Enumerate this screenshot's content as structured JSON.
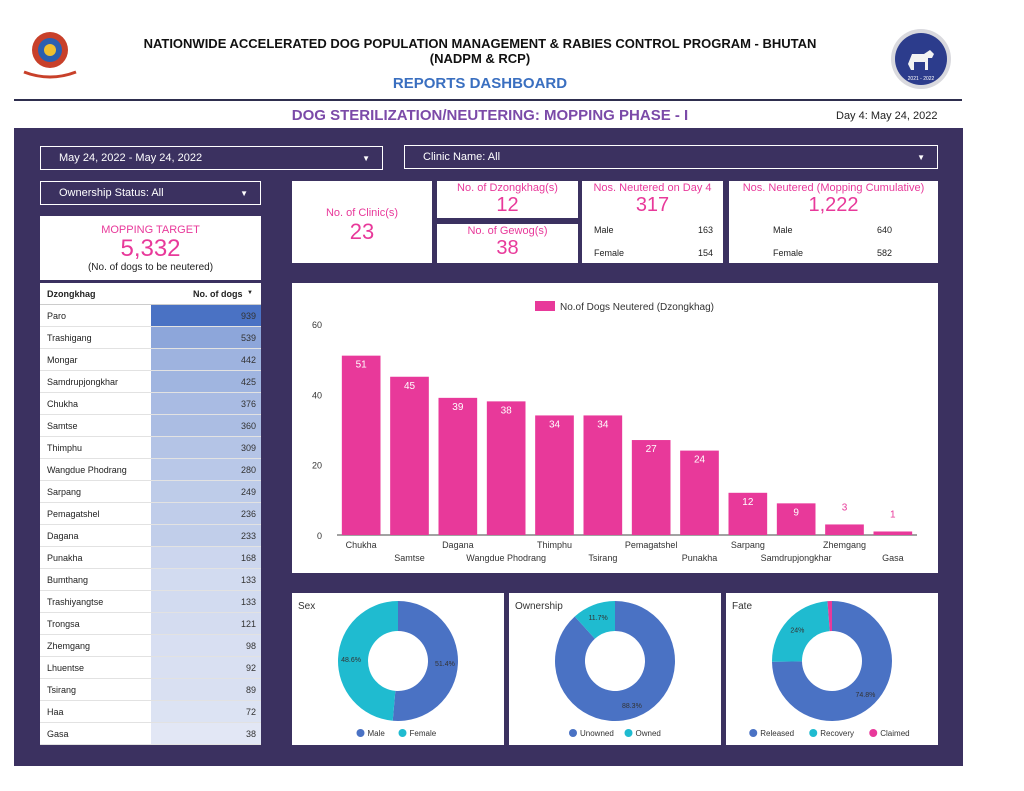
{
  "header": {
    "title": "NATIONWIDE ACCELERATED DOG POPULATION MANAGEMENT & RABIES CONTROL PROGRAM - BHUTAN",
    "subtitle": "(NADPM & RCP)",
    "dashboard": "REPORTS DASHBOARD",
    "logo_right_text": "2021 - 2022"
  },
  "phase_title": "DOG STERILIZATION/NEUTERING: MOPPING PHASE - I",
  "day_label": "Day 4: May 24, 2022",
  "filters": {
    "date_range": "May 24, 2022 - May 24, 2022",
    "clinic": "Clinic Name: All",
    "ownership": "Ownership Status: All"
  },
  "mopping_target": {
    "label": "MOPPING TARGET",
    "value": "5,332",
    "note": "(No. of dogs to be neutered)"
  },
  "clinics": {
    "label": "No. of Clinic(s)",
    "value": "23"
  },
  "dzongkhags": {
    "label": "No. of Dzongkhag(s)",
    "value": "12"
  },
  "gewogs": {
    "label": "No. of Gewog(s)",
    "value": "38"
  },
  "neutered_day": {
    "label": "Nos. Neutered on Day 4",
    "value": "317",
    "male_label": "Male",
    "male_value": "163",
    "female_label": "Female",
    "female_value": "154"
  },
  "neutered_cumulative": {
    "label": "Nos. Neutered (Mopping Cumulative)",
    "value": "1,222",
    "male_label": "Male",
    "male_value": "640",
    "female_label": "Female",
    "female_value": "582"
  },
  "table": {
    "col1": "Dzongkhag",
    "col2": "No. of dogs",
    "sort_icon": "sort-down-icon",
    "rows": [
      {
        "name": "Paro",
        "value": "939",
        "level": 939
      },
      {
        "name": "Trashigang",
        "value": "539",
        "level": 539
      },
      {
        "name": "Mongar",
        "value": "442",
        "level": 442
      },
      {
        "name": "Samdrupjongkhar",
        "value": "425",
        "level": 425
      },
      {
        "name": "Chukha",
        "value": "376",
        "level": 376
      },
      {
        "name": "Samtse",
        "value": "360",
        "level": 360
      },
      {
        "name": "Thimphu",
        "value": "309",
        "level": 309
      },
      {
        "name": "Wangdue Phodrang",
        "value": "280",
        "level": 280
      },
      {
        "name": "Sarpang",
        "value": "249",
        "level": 249
      },
      {
        "name": "Pemagatshel",
        "value": "236",
        "level": 236
      },
      {
        "name": "Dagana",
        "value": "233",
        "level": 233
      },
      {
        "name": "Punakha",
        "value": "168",
        "level": 168
      },
      {
        "name": "Bumthang",
        "value": "133",
        "level": 133
      },
      {
        "name": "Trashiyangtse",
        "value": "133",
        "level": 133
      },
      {
        "name": "Trongsa",
        "value": "121",
        "level": 121
      },
      {
        "name": "Zhemgang",
        "value": "98",
        "level": 98
      },
      {
        "name": "Lhuentse",
        "value": "92",
        "level": 92
      },
      {
        "name": "Tsirang",
        "value": "89",
        "level": 89
      },
      {
        "name": "Haa",
        "value": "72",
        "level": 72
      },
      {
        "name": "Gasa",
        "value": "38",
        "level": 38
      }
    ]
  },
  "colors": {
    "pink": "#e8399a",
    "blue": "#4a72c4",
    "teal": "#1fbbd0",
    "panel": "#3b3160",
    "purple_title": "#7b4aa8"
  },
  "chart_data": [
    {
      "type": "bar",
      "legend": "No.of Dogs Neutered (Dzongkhag)",
      "categories": [
        "Chukha",
        "Samtse",
        "Dagana",
        "Wangdue Phodrang",
        "Thimphu",
        "Tsirang",
        "Pemagatshel",
        "Punakha",
        "Sarpang",
        "Samdrupjongkhar",
        "Zhemgang",
        "Gasa"
      ],
      "values": [
        51,
        45,
        39,
        38,
        34,
        34,
        27,
        24,
        12,
        9,
        3,
        1
      ],
      "yticks": [
        "0",
        "20",
        "40",
        "60"
      ],
      "ylim": [
        0,
        60
      ],
      "legend_position": "top",
      "grid": false
    },
    {
      "type": "pie",
      "title": "Sex",
      "labels": [
        "Male",
        "Female"
      ],
      "values": [
        51.4,
        48.6
      ],
      "value_labels": [
        "51.4%",
        "48.6%"
      ],
      "colors": [
        "#4a72c4",
        "#1fbbd0"
      ]
    },
    {
      "type": "pie",
      "title": "Ownership",
      "labels": [
        "Unowned",
        "Owned"
      ],
      "values": [
        88.3,
        11.7
      ],
      "value_labels": [
        "88.3%",
        "11.7%"
      ],
      "colors": [
        "#4a72c4",
        "#1fbbd0"
      ]
    },
    {
      "type": "pie",
      "title": "Fate",
      "labels": [
        "Released",
        "Recovery",
        "Claimed"
      ],
      "values": [
        74.8,
        24,
        1.2
      ],
      "value_labels": [
        "74.8%",
        "24%",
        ""
      ],
      "colors": [
        "#4a72c4",
        "#1fbbd0",
        "#e8399a"
      ]
    }
  ]
}
